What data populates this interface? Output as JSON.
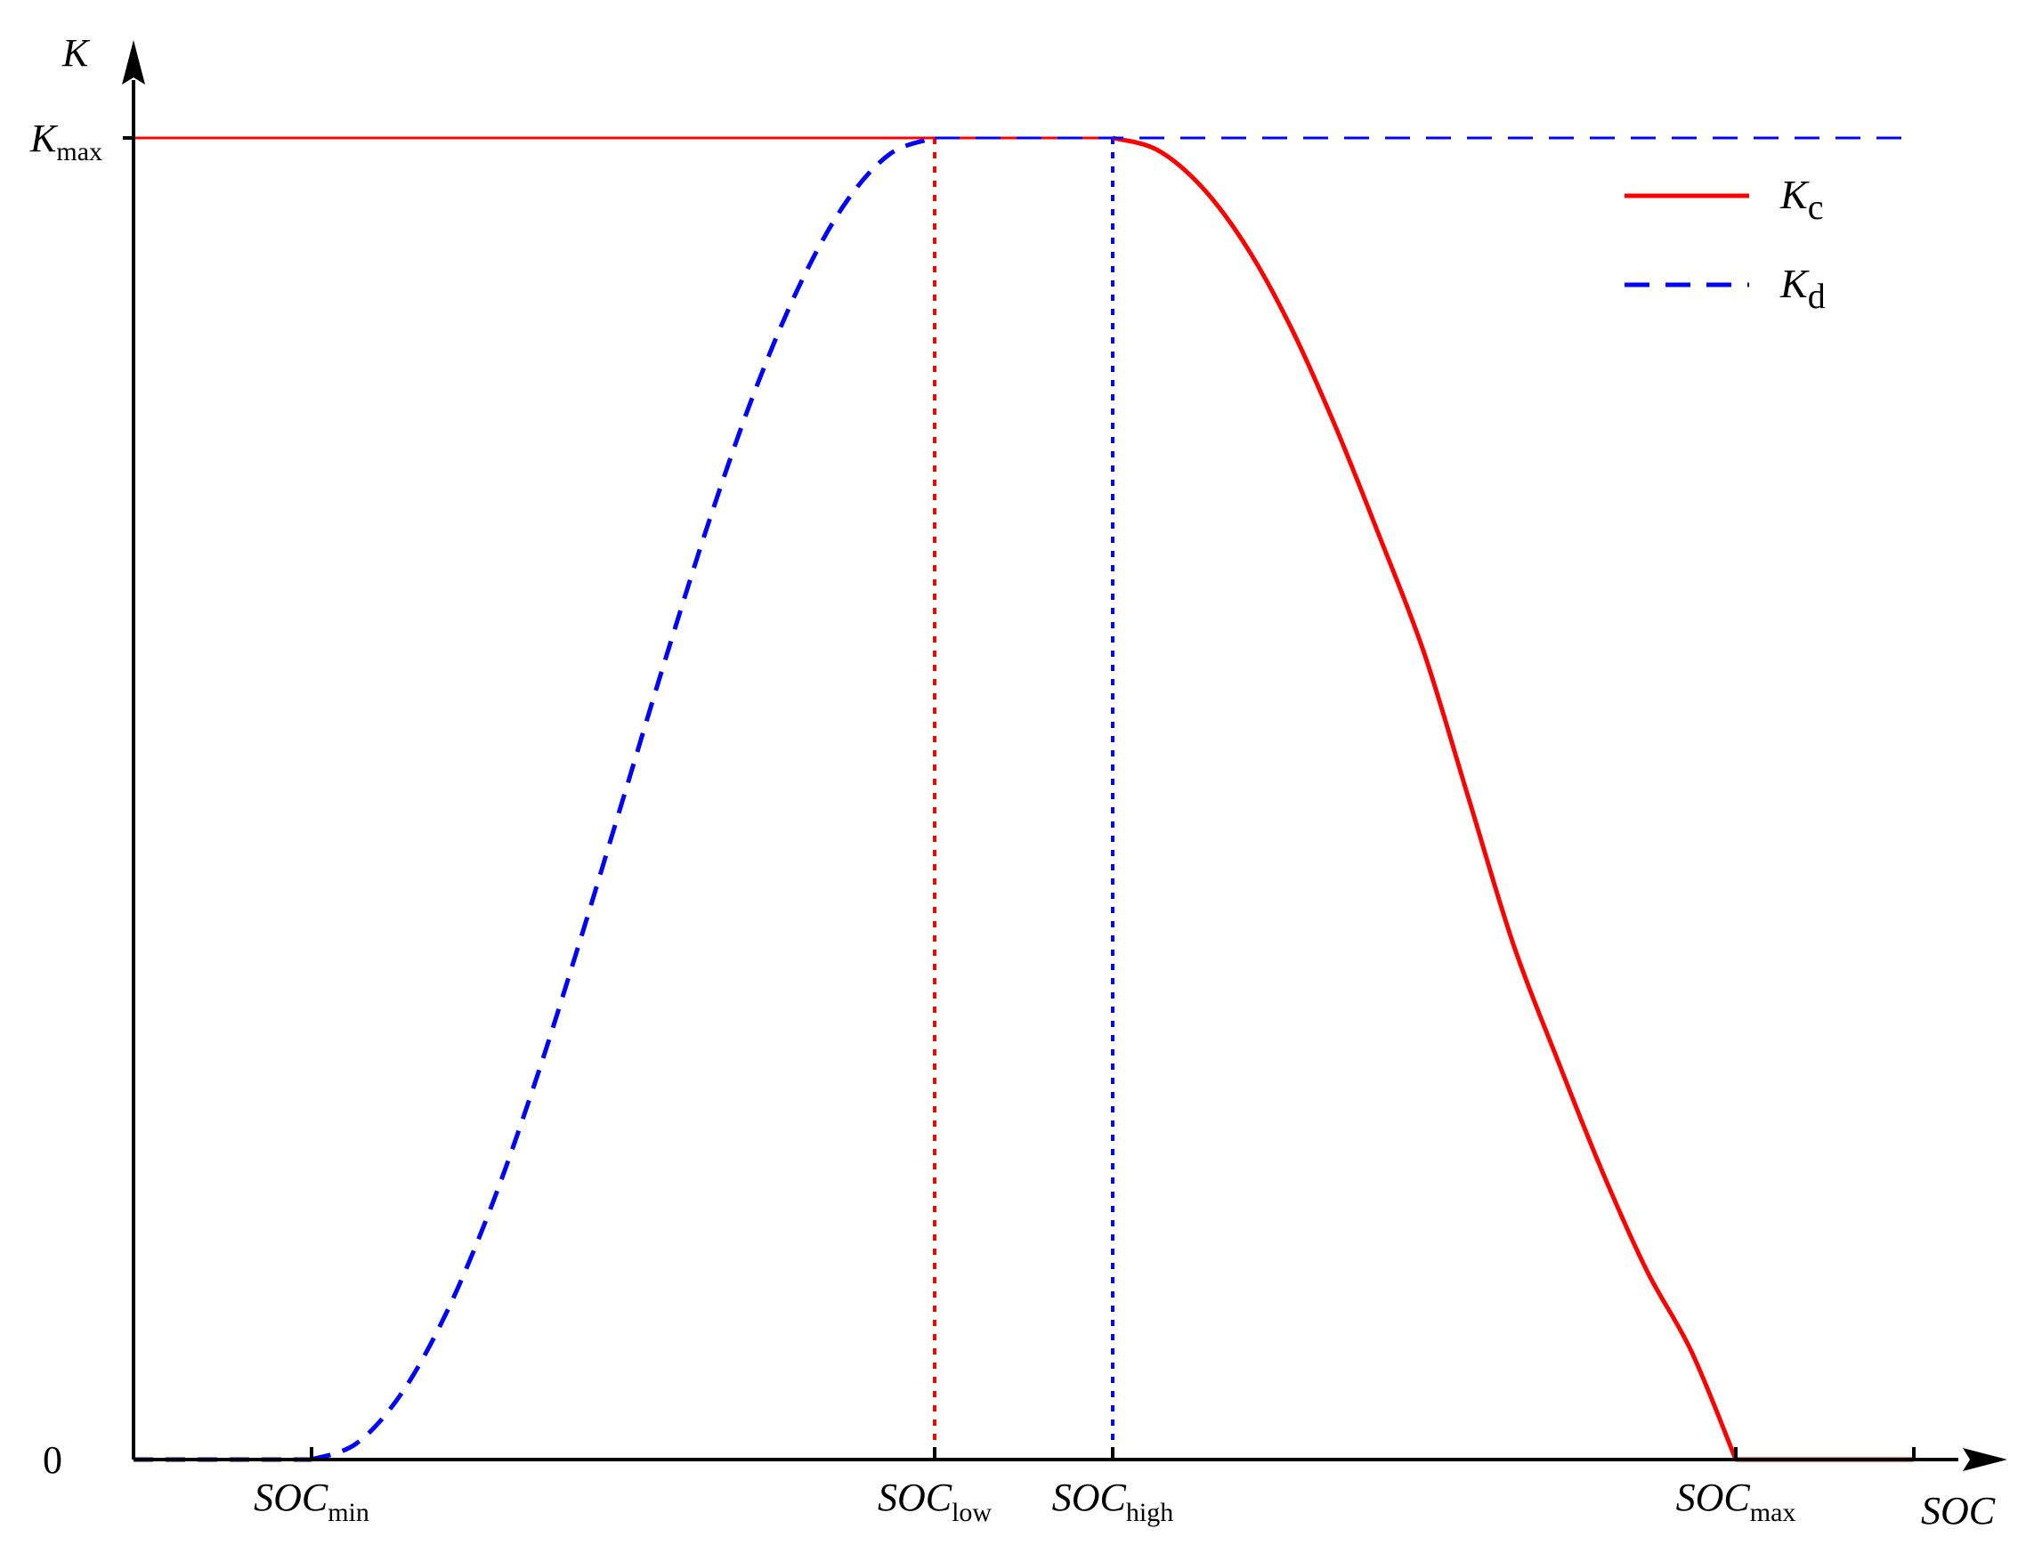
{
  "chart_data": {
    "type": "line",
    "title": "",
    "xlabel": "SOC",
    "ylabel": "K",
    "xlim": [
      0,
      1
    ],
    "ylim": [
      0,
      1
    ],
    "grid": false,
    "legend_position": "top-right",
    "y_ticks": [
      {
        "value": 1,
        "main": "K",
        "sub": "max",
        "italic": true
      },
      {
        "value": 0,
        "main": "0",
        "sub": "",
        "italic": false
      }
    ],
    "x_ticks": [
      {
        "value": 0.1,
        "main": "SOC",
        "sub": "min"
      },
      {
        "value": 0.45,
        "main": "SOC",
        "sub": "low"
      },
      {
        "value": 0.55,
        "main": "SOC",
        "sub": "high"
      },
      {
        "value": 0.9,
        "main": "SOC",
        "sub": "max"
      }
    ],
    "x_end_tick": 1.0,
    "series": [
      {
        "name": "K",
        "name_sub": "c",
        "color": "#ff0000",
        "style": "solid",
        "points": [
          [
            0,
            1
          ],
          [
            0.55,
            1
          ],
          [
            0.575,
            0.991
          ],
          [
            0.6,
            0.963
          ],
          [
            0.625,
            0.918
          ],
          [
            0.65,
            0.857
          ],
          [
            0.675,
            0.782
          ],
          [
            0.7,
            0.698
          ],
          [
            0.725,
            0.61
          ],
          [
            0.75,
            0.5
          ],
          [
            0.775,
            0.39
          ],
          [
            0.8,
            0.302
          ],
          [
            0.825,
            0.218
          ],
          [
            0.85,
            0.143
          ],
          [
            0.875,
            0.082
          ],
          [
            0.9,
            0.0
          ],
          [
            1.0,
            0.0
          ]
        ]
      },
      {
        "name": "K",
        "name_sub": "d",
        "color": "#0000ff",
        "style": "dashed",
        "points": [
          [
            0,
            0
          ],
          [
            0.1,
            0
          ],
          [
            0.125,
            0.012
          ],
          [
            0.15,
            0.049
          ],
          [
            0.175,
            0.109
          ],
          [
            0.2,
            0.188
          ],
          [
            0.225,
            0.283
          ],
          [
            0.25,
            0.389
          ],
          [
            0.275,
            0.5
          ],
          [
            0.3,
            0.611
          ],
          [
            0.325,
            0.717
          ],
          [
            0.35,
            0.812
          ],
          [
            0.375,
            0.891
          ],
          [
            0.4,
            0.951
          ],
          [
            0.425,
            0.988
          ],
          [
            0.45,
            1
          ],
          [
            1.0,
            1
          ]
        ]
      }
    ],
    "markers": [
      {
        "x": 0.45,
        "color": "#ff0000",
        "style": "dotted"
      },
      {
        "x": 0.55,
        "color": "#0000ff",
        "style": "dotted"
      }
    ]
  }
}
